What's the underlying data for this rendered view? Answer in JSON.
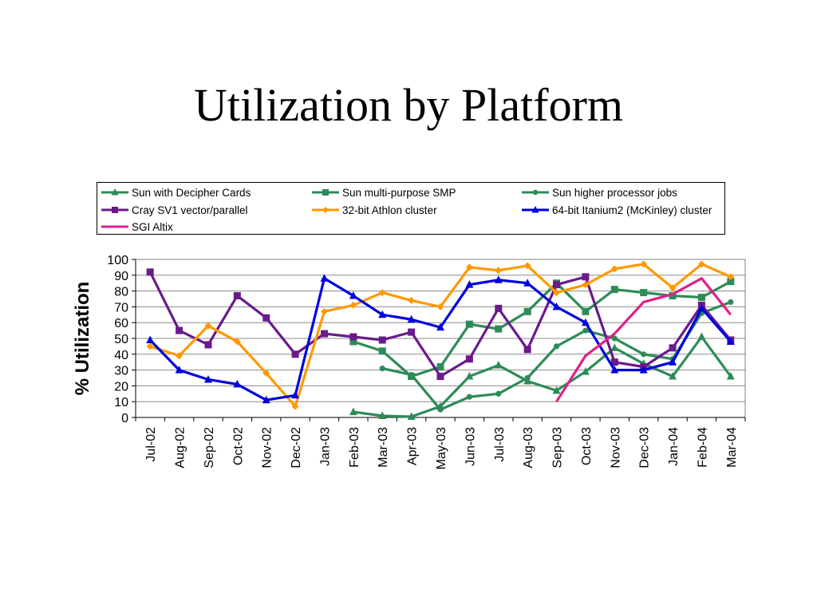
{
  "slide": {
    "title": "Utilization by Platform"
  },
  "chart_data": {
    "type": "line",
    "title": "",
    "xlabel": "",
    "ylabel": "% Utilization",
    "ylim": [
      0,
      100
    ],
    "yticks": [
      "0",
      "10",
      "20",
      "30",
      "40",
      "50",
      "60",
      "70",
      "80",
      "90",
      "100"
    ],
    "grid": true,
    "legend_position": "top",
    "categories": [
      "Jul-02",
      "Aug-02",
      "Sep-02",
      "Oct-02",
      "Nov-02",
      "Dec-02",
      "Jan-03",
      "Feb-03",
      "Mar-03",
      "Apr-03",
      "May-03",
      "Jun-03",
      "Jul-03",
      "Aug-03",
      "Sep-03",
      "Oct-03",
      "Nov-03",
      "Dec-03",
      "Jan-04",
      "Feb-04",
      "Mar-04"
    ],
    "series": [
      {
        "name": "Sun with Decipher Cards",
        "color": "#2E8B57",
        "marker": "triangle",
        "values": [
          null,
          null,
          null,
          null,
          null,
          null,
          null,
          3.5,
          1,
          0.5,
          7,
          26,
          33,
          23,
          17,
          29,
          44,
          34,
          26,
          51,
          26
        ]
      },
      {
        "name": "Sun multi-purpose SMP",
        "color": "#2E8B57",
        "marker": "square",
        "values": [
          null,
          null,
          null,
          null,
          null,
          null,
          null,
          48,
          42,
          26,
          32,
          59,
          56,
          67,
          85,
          67,
          81,
          79,
          77,
          76,
          86
        ]
      },
      {
        "name": "Sun higher processor jobs",
        "color": "#2E8B57",
        "marker": "circle",
        "values": [
          null,
          null,
          null,
          null,
          null,
          null,
          null,
          null,
          31,
          27,
          5,
          13,
          15,
          25,
          45,
          55,
          50,
          40,
          37,
          66,
          73
        ]
      },
      {
        "name": "Cray SV1 vector/parallel",
        "color": "#6A1A8A",
        "marker": "square",
        "values": [
          92,
          55,
          46,
          77,
          63,
          40,
          53,
          51,
          49,
          54,
          26,
          37,
          69,
          43,
          84,
          89,
          35,
          32,
          44,
          71,
          49
        ]
      },
      {
        "name": "32-bit Athlon cluster",
        "color": "#FF9900",
        "marker": "diamond",
        "values": [
          45,
          39,
          58,
          48,
          28,
          7,
          67,
          71,
          79,
          74,
          70,
          95,
          93,
          96,
          79,
          84,
          94,
          97,
          82,
          97,
          89
        ]
      },
      {
        "name": "64-bit Itanium2 (McKinley) cluster",
        "color": "#0000DD",
        "marker": "triangle",
        "values": [
          49,
          30,
          24,
          21,
          11,
          14,
          88,
          77,
          65,
          62,
          57,
          84,
          87,
          85,
          70,
          60,
          30,
          30,
          35,
          69,
          48
        ]
      },
      {
        "name": "SGI Altix",
        "color": "#E0208A",
        "marker": "none",
        "values": [
          null,
          null,
          null,
          null,
          null,
          null,
          null,
          null,
          null,
          null,
          null,
          null,
          null,
          null,
          10,
          39,
          53,
          73,
          78,
          88,
          65
        ]
      }
    ]
  }
}
